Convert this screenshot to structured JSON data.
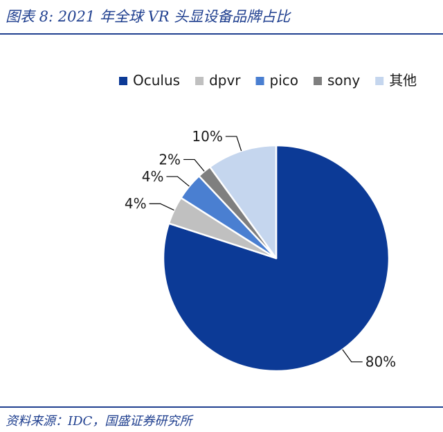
{
  "header": {
    "title": "图表 8:  2021 年全球 VR 头显设备品牌占比"
  },
  "footer": {
    "source": "资料来源：IDC，国盛证券研究所"
  },
  "colors": {
    "brand": "#1f3f8f"
  },
  "chart_data": {
    "type": "pie",
    "title": "",
    "legend_position": "top-right",
    "start": "top (12 o'clock), clockwise",
    "series": [
      {
        "name": "Oculus",
        "value": 80,
        "label": "80%",
        "color": "#0c3a96"
      },
      {
        "name": "dpvr",
        "value": 4,
        "label": "4%",
        "color": "#c0c0c0"
      },
      {
        "name": "pico",
        "value": 4,
        "label": "4%",
        "color": "#4a7fd1"
      },
      {
        "name": "sony",
        "value": 2,
        "label": "2%",
        "color": "#7f7f7f"
      },
      {
        "name": "其他",
        "value": 10,
        "label": "10%",
        "color": "#c5d6ee"
      }
    ]
  }
}
